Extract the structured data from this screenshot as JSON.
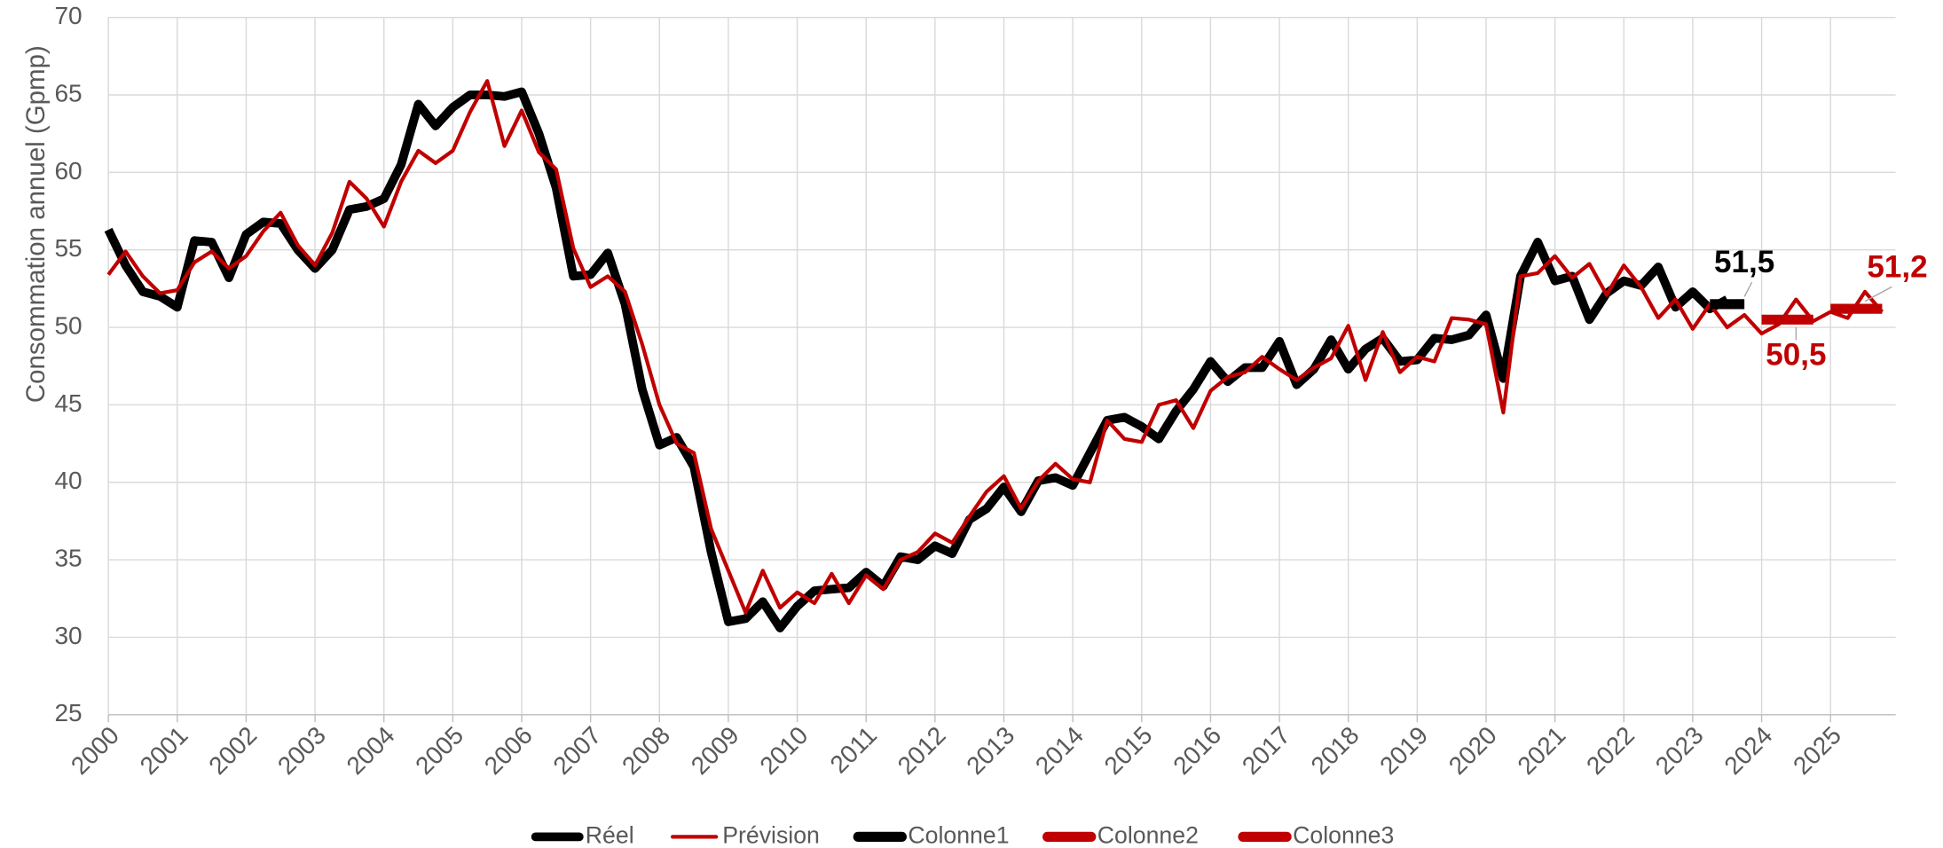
{
  "chart_data": {
    "type": "line",
    "y_label": "Consommation annuel (Gpmp)",
    "x": [
      2000,
      2000.25,
      2000.5,
      2000.75,
      2001,
      2001.25,
      2001.5,
      2001.75,
      2002,
      2002.25,
      2002.5,
      2002.75,
      2003,
      2003.25,
      2003.5,
      2003.75,
      2004,
      2004.25,
      2004.5,
      2004.75,
      2005,
      2005.25,
      2005.5,
      2005.75,
      2006,
      2006.25,
      2006.5,
      2006.75,
      2007,
      2007.25,
      2007.5,
      2007.75,
      2008,
      2008.25,
      2008.5,
      2008.75,
      2009,
      2009.25,
      2009.5,
      2009.75,
      2010,
      2010.25,
      2010.5,
      2010.75,
      2011,
      2011.25,
      2011.5,
      2011.75,
      2012,
      2012.25,
      2012.5,
      2012.75,
      2013,
      2013.25,
      2013.5,
      2013.75,
      2014,
      2014.25,
      2014.5,
      2014.75,
      2015,
      2015.25,
      2015.5,
      2015.75,
      2016,
      2016.25,
      2016.5,
      2016.75,
      2017,
      2017.25,
      2017.5,
      2017.75,
      2018,
      2018.25,
      2018.5,
      2018.75,
      2019,
      2019.25,
      2019.5,
      2019.75,
      2020,
      2020.25,
      2020.5,
      2020.75,
      2021,
      2021.25,
      2021.5,
      2021.75,
      2022,
      2022.25,
      2022.5,
      2022.75,
      2023,
      2023.25,
      2023.5,
      2023.75,
      2024,
      2024.25,
      2024.5,
      2024.75,
      2025,
      2025.25,
      2025.5,
      2025.75
    ],
    "series": [
      {
        "name": "Réel",
        "color": "#000000",
        "line_width": 7,
        "values": [
          56.3,
          54.0,
          52.3,
          52.0,
          51.3,
          55.6,
          55.5,
          53.2,
          56.0,
          56.8,
          56.7,
          55.0,
          53.8,
          55.0,
          57.6,
          57.8,
          58.3,
          60.5,
          64.4,
          63.0,
          64.2,
          65.0,
          65.0,
          64.9,
          65.2,
          62.5,
          59.0,
          53.3,
          53.4,
          54.8,
          51.5,
          46.0,
          42.4,
          42.9,
          41.0,
          35.5,
          31.0,
          31.2,
          32.3,
          30.6,
          32.0,
          33.0,
          33.1,
          33.2,
          34.2,
          33.3,
          35.2,
          35.0,
          35.9,
          35.4,
          37.6,
          38.3,
          39.7,
          38.1,
          40.1,
          40.3,
          39.8,
          41.9,
          44.0,
          44.2,
          43.6,
          42.8,
          44.6,
          46.0,
          47.8,
          46.5,
          47.4,
          47.4,
          49.1,
          46.3,
          47.3,
          49.2,
          47.3,
          48.6,
          49.3,
          47.8,
          47.9,
          49.3,
          49.2,
          49.5,
          50.8,
          46.7,
          53.3,
          55.5,
          53.0,
          53.3,
          50.5,
          52.2,
          53.0,
          52.7,
          53.9,
          51.3,
          52.3,
          51.2,
          51.8,
          null,
          null,
          null,
          null,
          null,
          null,
          null,
          null,
          null
        ]
      },
      {
        "name": "Prévision",
        "color": "#c00000",
        "line_width": 3,
        "values": [
          53.4,
          54.9,
          53.3,
          52.2,
          52.4,
          54.2,
          54.9,
          53.8,
          54.6,
          56.2,
          57.4,
          55.3,
          54.0,
          56.1,
          59.4,
          58.3,
          56.5,
          59.4,
          61.4,
          60.6,
          61.4,
          63.9,
          65.9,
          61.7,
          64.0,
          61.3,
          60.2,
          55.1,
          52.6,
          53.3,
          52.3,
          48.9,
          45.0,
          42.5,
          41.9,
          37.0,
          34.3,
          31.6,
          34.3,
          31.9,
          32.9,
          32.2,
          34.1,
          32.2,
          34.0,
          33.1,
          35.0,
          35.5,
          36.7,
          36.1,
          37.8,
          39.4,
          40.4,
          38.3,
          40.1,
          41.2,
          40.2,
          40.0,
          44.0,
          42.8,
          42.6,
          45.0,
          45.3,
          43.5,
          45.9,
          46.8,
          47.1,
          48.1,
          47.3,
          46.6,
          47.4,
          48.0,
          50.1,
          46.6,
          49.7,
          47.1,
          48.1,
          47.8,
          50.6,
          50.5,
          50.2,
          44.5,
          53.3,
          53.5,
          54.6,
          53.2,
          54.1,
          52.1,
          54.0,
          52.6,
          50.6,
          51.8,
          49.9,
          51.5,
          50.0,
          50.8,
          49.6,
          50.2,
          51.8,
          50.4,
          51.0,
          50.6,
          52.3,
          51.0
        ]
      },
      {
        "name": "Colonne1",
        "color": "#000000",
        "line_width": 8,
        "values": [
          null,
          null,
          null,
          null,
          null,
          null,
          null,
          null,
          null,
          null,
          null,
          null,
          null,
          null,
          null,
          null,
          null,
          null,
          null,
          null,
          null,
          null,
          null,
          null,
          null,
          null,
          null,
          null,
          null,
          null,
          null,
          null,
          null,
          null,
          null,
          null,
          null,
          null,
          null,
          null,
          null,
          null,
          null,
          null,
          null,
          null,
          null,
          null,
          null,
          null,
          null,
          null,
          null,
          null,
          null,
          null,
          null,
          null,
          null,
          null,
          null,
          null,
          null,
          null,
          null,
          null,
          null,
          null,
          null,
          null,
          null,
          null,
          null,
          null,
          null,
          null,
          null,
          null,
          null,
          null,
          null,
          null,
          null,
          null,
          null,
          null,
          null,
          null,
          null,
          null,
          null,
          null,
          null,
          51.5,
          51.5,
          51.5,
          null,
          null,
          null,
          null,
          null,
          null,
          null,
          null
        ],
        "value_labels": [
          null,
          null,
          null,
          null,
          null,
          null,
          null,
          null,
          null,
          null,
          null,
          null,
          null,
          null,
          null,
          null,
          null,
          null,
          null,
          null,
          null,
          null,
          null,
          null,
          null,
          null,
          null,
          null,
          null,
          null,
          null,
          null,
          null,
          null,
          null,
          null,
          null,
          null,
          null,
          null,
          null,
          null,
          null,
          null,
          null,
          null,
          null,
          null,
          null,
          null,
          null,
          null,
          null,
          null,
          null,
          null,
          null,
          null,
          null,
          null,
          null,
          null,
          null,
          null,
          null,
          null,
          null,
          null,
          null,
          null,
          null,
          null,
          null,
          null,
          null,
          null,
          null,
          null,
          null,
          null,
          null,
          null,
          null,
          null,
          null,
          null,
          null,
          null,
          null,
          null,
          null,
          null,
          null,
          null,
          null,
          "51,5",
          null,
          null,
          null,
          null,
          null,
          null,
          null,
          null
        ]
      },
      {
        "name": "Colonne2",
        "color": "#c00000",
        "line_width": 8,
        "values": [
          null,
          null,
          null,
          null,
          null,
          null,
          null,
          null,
          null,
          null,
          null,
          null,
          null,
          null,
          null,
          null,
          null,
          null,
          null,
          null,
          null,
          null,
          null,
          null,
          null,
          null,
          null,
          null,
          null,
          null,
          null,
          null,
          null,
          null,
          null,
          null,
          null,
          null,
          null,
          null,
          null,
          null,
          null,
          null,
          null,
          null,
          null,
          null,
          null,
          null,
          null,
          null,
          null,
          null,
          null,
          null,
          null,
          null,
          null,
          null,
          null,
          null,
          null,
          null,
          null,
          null,
          null,
          null,
          null,
          null,
          null,
          null,
          null,
          null,
          null,
          null,
          null,
          null,
          null,
          null,
          null,
          null,
          null,
          null,
          null,
          null,
          null,
          null,
          null,
          null,
          null,
          null,
          null,
          null,
          null,
          null,
          50.5,
          50.5,
          50.5,
          50.5,
          null,
          null,
          null,
          null
        ],
        "value_labels": [
          null,
          null,
          null,
          null,
          null,
          null,
          null,
          null,
          null,
          null,
          null,
          null,
          null,
          null,
          null,
          null,
          null,
          null,
          null,
          null,
          null,
          null,
          null,
          null,
          null,
          null,
          null,
          null,
          null,
          null,
          null,
          null,
          null,
          null,
          null,
          null,
          null,
          null,
          null,
          null,
          null,
          null,
          null,
          null,
          null,
          null,
          null,
          null,
          null,
          null,
          null,
          null,
          null,
          null,
          null,
          null,
          null,
          null,
          null,
          null,
          null,
          null,
          null,
          null,
          null,
          null,
          null,
          null,
          null,
          null,
          null,
          null,
          null,
          null,
          null,
          null,
          null,
          null,
          null,
          null,
          null,
          null,
          null,
          null,
          null,
          null,
          null,
          null,
          null,
          null,
          null,
          null,
          null,
          null,
          null,
          null,
          null,
          null,
          "50,5",
          null,
          null,
          null,
          null,
          null
        ]
      },
      {
        "name": "Colonne3",
        "color": "#c00000",
        "line_width": 8,
        "values": [
          null,
          null,
          null,
          null,
          null,
          null,
          null,
          null,
          null,
          null,
          null,
          null,
          null,
          null,
          null,
          null,
          null,
          null,
          null,
          null,
          null,
          null,
          null,
          null,
          null,
          null,
          null,
          null,
          null,
          null,
          null,
          null,
          null,
          null,
          null,
          null,
          null,
          null,
          null,
          null,
          null,
          null,
          null,
          null,
          null,
          null,
          null,
          null,
          null,
          null,
          null,
          null,
          null,
          null,
          null,
          null,
          null,
          null,
          null,
          null,
          null,
          null,
          null,
          null,
          null,
          null,
          null,
          null,
          null,
          null,
          null,
          null,
          null,
          null,
          null,
          null,
          null,
          null,
          null,
          null,
          null,
          null,
          null,
          null,
          null,
          null,
          null,
          null,
          null,
          null,
          null,
          null,
          null,
          null,
          null,
          null,
          null,
          null,
          null,
          null,
          51.2,
          51.2,
          51.2,
          51.2
        ],
        "value_labels": [
          null,
          null,
          null,
          null,
          null,
          null,
          null,
          null,
          null,
          null,
          null,
          null,
          null,
          null,
          null,
          null,
          null,
          null,
          null,
          null,
          null,
          null,
          null,
          null,
          null,
          null,
          null,
          null,
          null,
          null,
          null,
          null,
          null,
          null,
          null,
          null,
          null,
          null,
          null,
          null,
          null,
          null,
          null,
          null,
          null,
          null,
          null,
          null,
          null,
          null,
          null,
          null,
          null,
          null,
          null,
          null,
          null,
          null,
          null,
          null,
          null,
          null,
          null,
          null,
          null,
          null,
          null,
          null,
          null,
          null,
          null,
          null,
          null,
          null,
          null,
          null,
          null,
          null,
          null,
          null,
          null,
          null,
          null,
          null,
          null,
          null,
          null,
          null,
          null,
          null,
          null,
          null,
          null,
          null,
          null,
          null,
          null,
          null,
          null,
          null,
          null,
          null,
          "51,2",
          null
        ]
      }
    ],
    "xlim": [
      2000,
      2026
    ],
    "xticks": [
      2000,
      2001,
      2002,
      2003,
      2004,
      2005,
      2006,
      2007,
      2008,
      2009,
      2010,
      2011,
      2012,
      2013,
      2014,
      2015,
      2016,
      2017,
      2018,
      2019,
      2020,
      2021,
      2022,
      2023,
      2024,
      2025
    ],
    "ylim": [
      25,
      70
    ],
    "yticks": [
      25,
      30,
      35,
      40,
      45,
      50,
      55,
      60,
      65,
      70
    ],
    "grid": true,
    "legend": "bottom"
  }
}
